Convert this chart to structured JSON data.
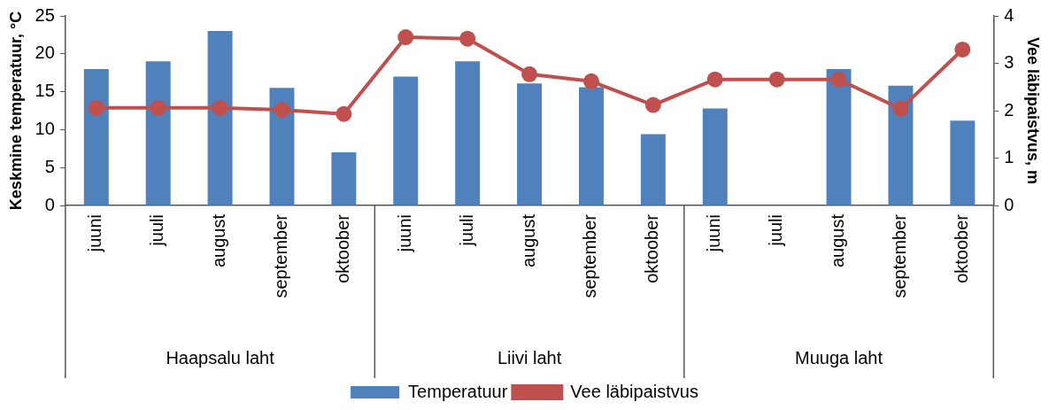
{
  "chart_data": {
    "type": "bar",
    "categories": [
      "juuni",
      "juuli",
      "august",
      "september",
      "oktoober",
      "juuni",
      "juuli",
      "august",
      "september",
      "oktoober",
      "juuni",
      "juuli",
      "august",
      "september",
      "oktoober"
    ],
    "annotations": [
      "Haapsalu laht",
      "Liivi laht",
      "Muuga laht"
    ],
    "series": [
      {
        "name": "Temperatuur",
        "color": "#4f81bd",
        "values": [
          18,
          19,
          23,
          15.5,
          7,
          17,
          19,
          16.1,
          15.6,
          9.4,
          12.8,
          null,
          18,
          15.8,
          11.2
        ]
      },
      {
        "name": "Vee läbipaistvus",
        "type": "line",
        "axis": "y2",
        "color": "#c0504d",
        "values": [
          2.06,
          2.06,
          2.06,
          2.02,
          1.93,
          3.55,
          3.52,
          2.77,
          2.62,
          2.12,
          2.66,
          2.66,
          2.66,
          2.04,
          3.29
        ]
      }
    ],
    "ylabel": "Keskmine temperatuur, °C",
    "y2label": "Vee läbipaistvus, m",
    "ylim": [
      0,
      25
    ],
    "yticks": [
      0,
      5,
      10,
      15,
      20,
      25
    ],
    "y2lim": [
      0,
      4
    ],
    "y2ticks": [
      0,
      1,
      2,
      3,
      4
    ],
    "marker": "circle",
    "line_style": "solid",
    "grid": false,
    "legend": "bottom"
  }
}
